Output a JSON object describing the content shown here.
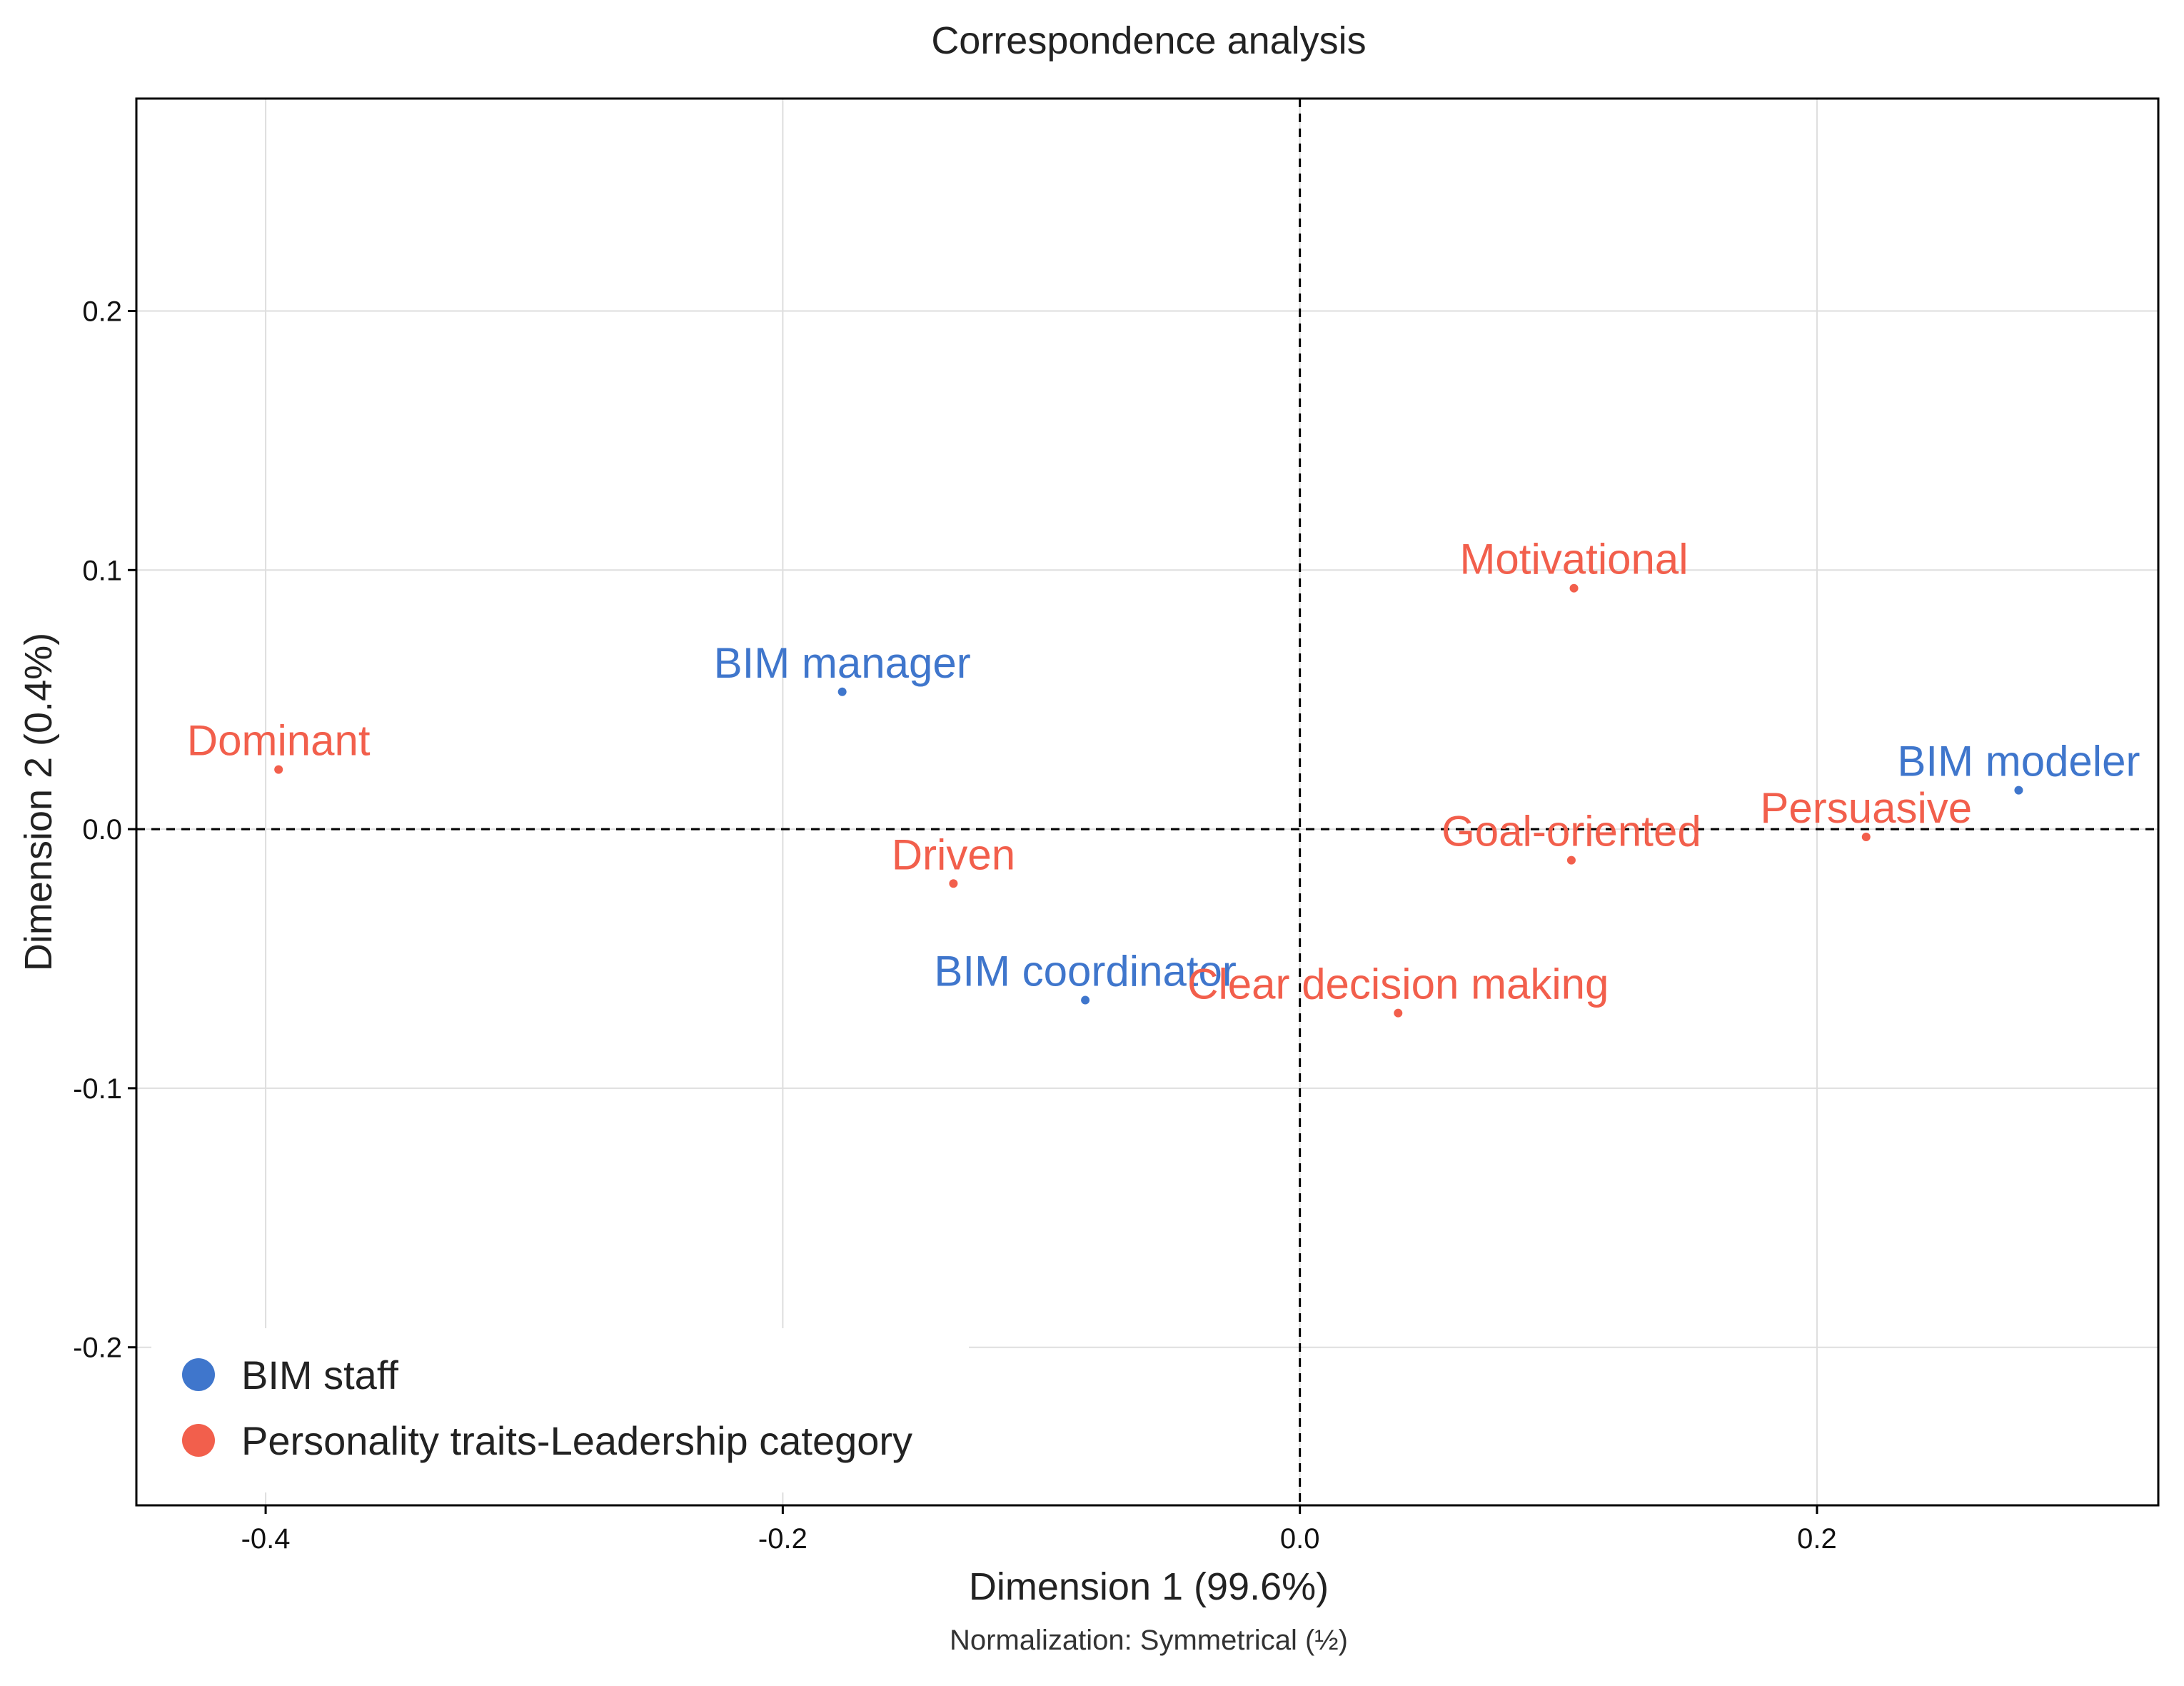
{
  "chart_data": {
    "type": "scatter",
    "title": "Correspondence analysis",
    "xlabel": "Dimension 1 (99.6%)",
    "ylabel": "Dimension 2 (0.4%)",
    "caption": "Normalization: Symmetrical (½)",
    "xlim": [
      -0.45,
      0.332
    ],
    "ylim": [
      -0.261,
      0.282
    ],
    "xticks": [
      -0.4,
      -0.2,
      0.0,
      0.2
    ],
    "xtick_labels": [
      "-0.4",
      "-0.2",
      "0.0",
      "0.2"
    ],
    "yticks": [
      -0.2,
      -0.1,
      0.0,
      0.1,
      0.2
    ],
    "ytick_labels": [
      "-0.2",
      "-0.1",
      "0.0",
      "0.1",
      "0.2"
    ],
    "grid": true,
    "reference_lines": {
      "x": 0.0,
      "y": 0.0,
      "style": "dashed"
    },
    "legend_position": "bottom-left",
    "series": [
      {
        "name": "BIM staff",
        "color": "#3F76CC",
        "points": [
          {
            "label": "BIM manager",
            "x": -0.177,
            "y": 0.053
          },
          {
            "label": "BIM coordinator",
            "x": -0.083,
            "y": -0.066
          },
          {
            "label": "BIM modeler",
            "x": 0.278,
            "y": 0.015
          }
        ]
      },
      {
        "name": "Personality traits-Leadership category",
        "color": "#F25F4C",
        "points": [
          {
            "label": "Dominant",
            "x": -0.395,
            "y": 0.023
          },
          {
            "label": "Driven",
            "x": -0.134,
            "y": -0.021
          },
          {
            "label": "Motivational",
            "x": 0.106,
            "y": 0.093
          },
          {
            "label": "Goal-oriented",
            "x": 0.105,
            "y": -0.012
          },
          {
            "label": "Persuasive",
            "x": 0.219,
            "y": -0.003
          },
          {
            "label": "Clear decision making",
            "x": 0.038,
            "y": -0.071
          }
        ]
      }
    ]
  }
}
